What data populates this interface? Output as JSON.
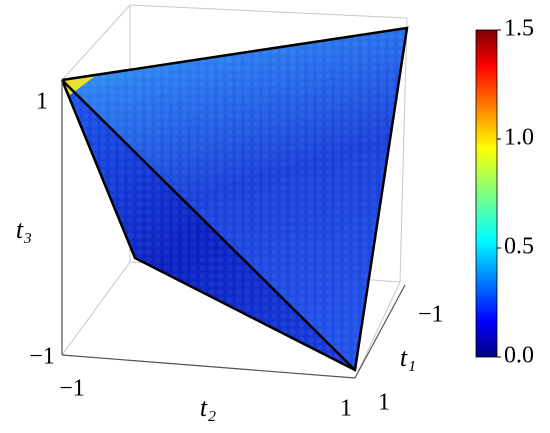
{
  "chart_data": {
    "type": "hexbin3d",
    "xlabel": "t₁",
    "ylabel": "t₂",
    "zlabel": "t₃",
    "xlim": [
      -1,
      1
    ],
    "ylim": [
      -1,
      1
    ],
    "zlim": [
      -1,
      1
    ],
    "xticks": [
      {
        "value": -1,
        "label": "−1"
      },
      1
    ],
    "yticks": [
      {
        "value": -1,
        "label": "−1"
      },
      1
    ],
    "zticks": [
      {
        "value": -1,
        "label": "−1"
      },
      1
    ],
    "colormap": "jet",
    "clim": [
      0,
      1.5
    ],
    "cticks": [
      {
        "value": 0,
        "label": "0.0"
      },
      {
        "value": 0.5,
        "label": "0.5"
      },
      {
        "value": 1,
        "label": "1.0"
      },
      {
        "value": 1.5,
        "label": "1.5"
      }
    ]
  }
}
